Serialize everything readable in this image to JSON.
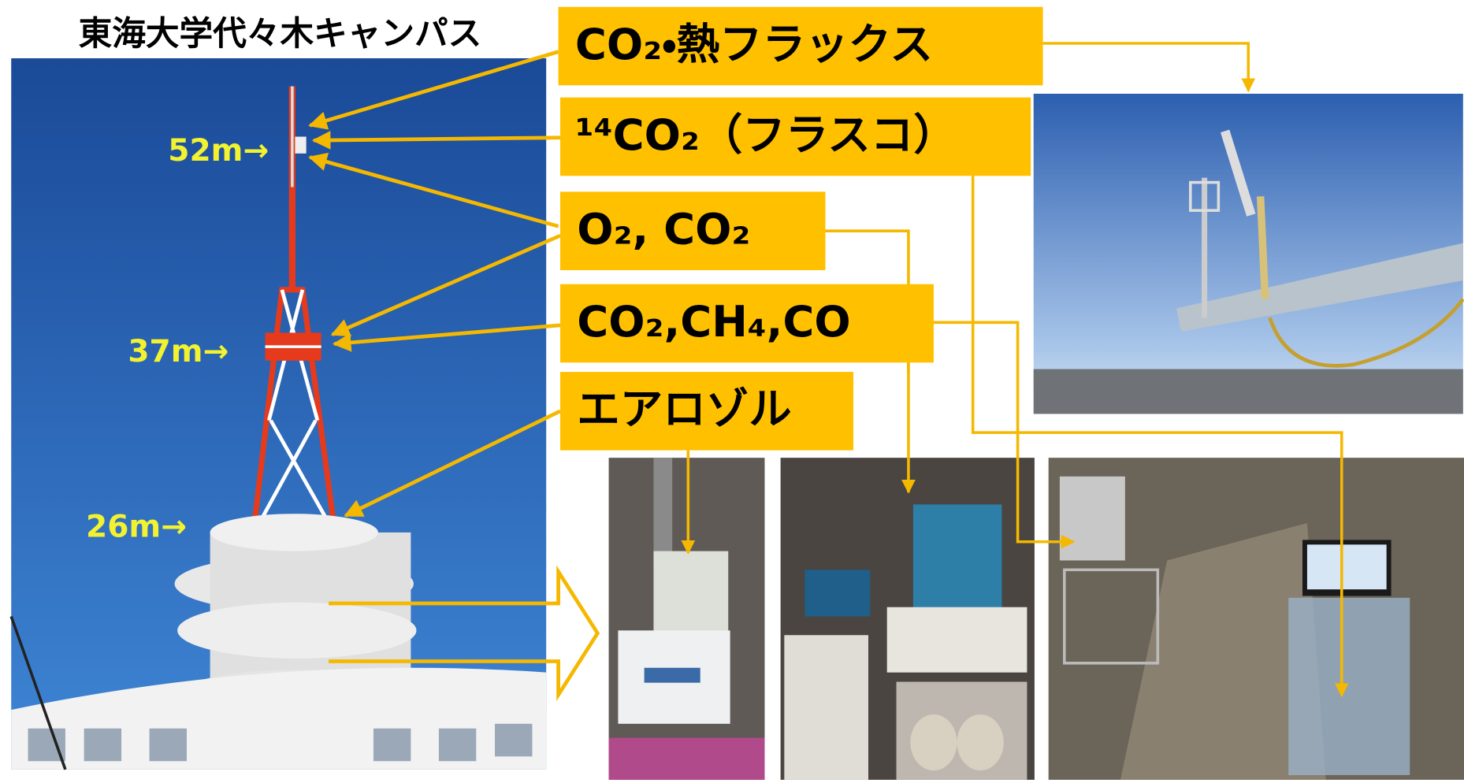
{
  "header": {
    "title": "東海大学代々木キャンパス"
  },
  "heights": [
    "52m→",
    "37m→",
    "26m→"
  ],
  "labels": [
    "CO₂・熱フラックス",
    "¹⁴CO₂（フラスコ）",
    "O₂, CO₂",
    "CO₂,CH₄,CO",
    "エアロゾル"
  ]
}
